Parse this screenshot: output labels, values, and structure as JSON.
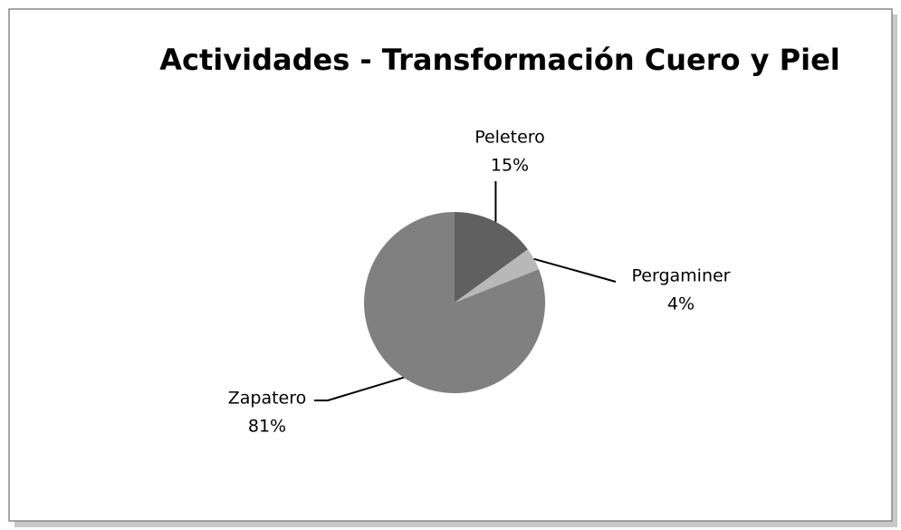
{
  "chart_data": {
    "type": "pie",
    "title": "Actividades - Transformación Cuero y Piel",
    "categories": [
      "Peletero",
      "Pergaminer",
      "Zapatero"
    ],
    "values": [
      15,
      4,
      81
    ],
    "value_labels": [
      "15%",
      "4%",
      "81%"
    ],
    "colors": [
      "#606060",
      "#b8b8b8",
      "#808080"
    ]
  }
}
